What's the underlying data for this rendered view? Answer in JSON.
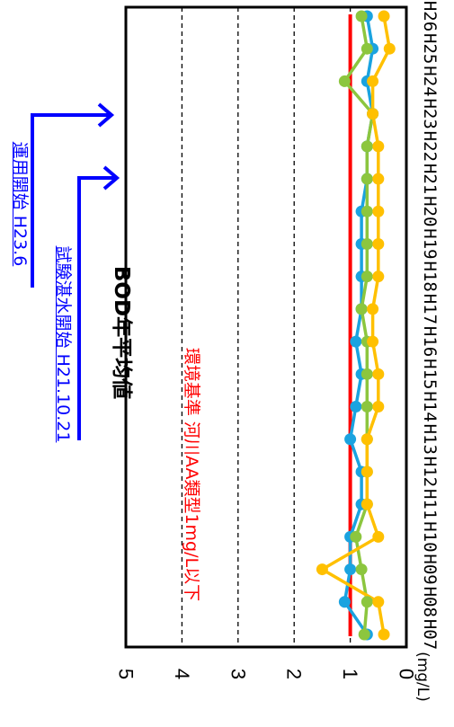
{
  "chart_data": {
    "type": "line",
    "title": "BOD年平均値",
    "ylabel": "(mg/L)",
    "xlabel": "",
    "categories": [
      "H07",
      "H08",
      "H09",
      "H10",
      "H11",
      "H12",
      "H13",
      "H14",
      "H15",
      "H16",
      "H17",
      "H18",
      "H19",
      "H20",
      "H21",
      "H22",
      "H23",
      "H24",
      "H25",
      "H26"
    ],
    "ylim": [
      0,
      5
    ],
    "yticks": [
      0,
      1,
      2,
      3,
      4,
      5
    ],
    "grid": true,
    "series": [
      {
        "color": "#1aa3e0",
        "values": [
          0.7,
          1.1,
          1.0,
          1.0,
          0.8,
          0.8,
          1.0,
          0.9,
          0.8,
          0.9,
          0.8,
          0.8,
          0.8,
          0.8,
          0.7,
          0.7,
          0.6,
          0.7,
          0.6,
          0.7
        ]
      },
      {
        "color": "#8cc63e",
        "values": [
          0.75,
          0.7,
          0.8,
          0.9,
          0.7,
          0.7,
          0.7,
          0.7,
          0.7,
          0.7,
          0.8,
          0.7,
          0.7,
          0.7,
          0.7,
          0.7,
          0.6,
          1.1,
          0.7,
          0.8
        ]
      },
      {
        "color": "#ffc000",
        "values": [
          0.4,
          0.5,
          1.5,
          0.5,
          0.7,
          0.7,
          0.7,
          0.5,
          0.5,
          0.6,
          0.6,
          0.5,
          0.5,
          0.5,
          0.5,
          0.5,
          0.6,
          0.6,
          0.3,
          0.4
        ]
      }
    ],
    "reference_line": {
      "value": 1,
      "color": "#ff0000",
      "label": "環境基準 河川AA類型1mg/L以下"
    },
    "annotations": [
      {
        "text": "試験湛水開始 H21.10.21",
        "color": "#0000ff"
      },
      {
        "text": "運用開始 H23.6",
        "color": "#0000ff"
      }
    ]
  }
}
